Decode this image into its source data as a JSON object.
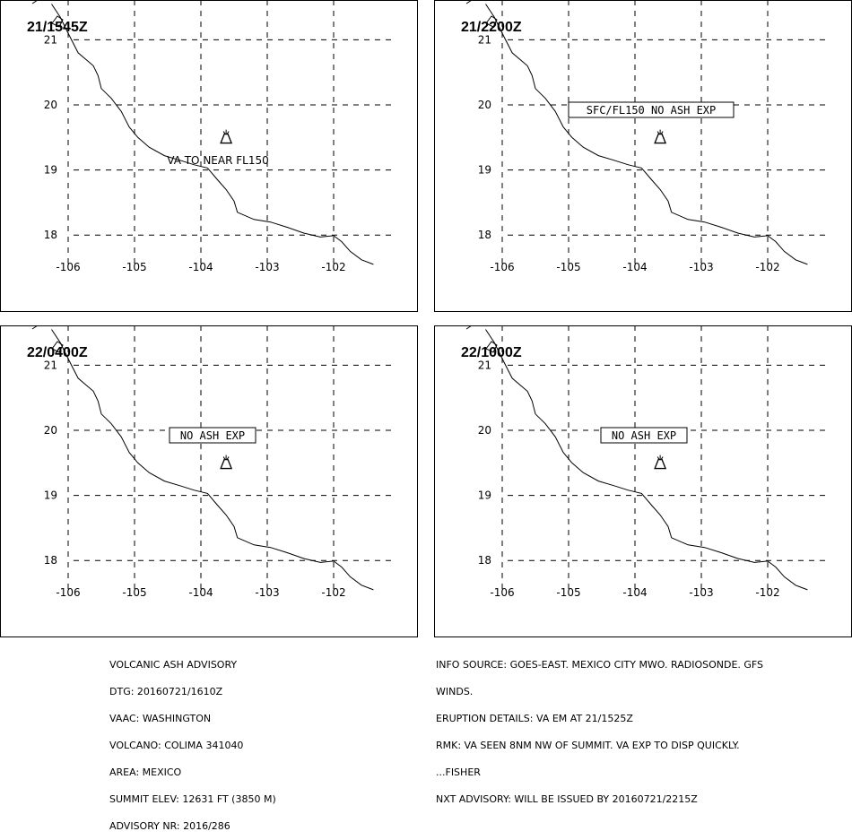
{
  "panels": [
    {
      "timestamp": "21/1545Z",
      "label": "VA TO NEAR FL150",
      "boxed": false
    },
    {
      "timestamp": "21/2200Z",
      "label": "SFC/FL150 NO ASH EXP",
      "boxed": true
    },
    {
      "timestamp": "22/0400Z",
      "label": "NO ASH EXP",
      "boxed": true
    },
    {
      "timestamp": "22/1000Z",
      "label": "NO ASH EXP",
      "boxed": true
    }
  ],
  "map": {
    "lon_ticks": [
      "-106",
      "-105",
      "-104",
      "-103",
      "-102"
    ],
    "lat_ticks": [
      "21",
      "20",
      "19",
      "18"
    ],
    "volcano": {
      "lon": -103.62,
      "lat": 19.51
    }
  },
  "advisory_left": [
    "VOLCANIC ASH ADVISORY",
    "DTG: 20160721/1610Z",
    "VAAC: WASHINGTON",
    "VOLCANO: COLIMA 341040",
    "AREA: MEXICO",
    "SUMMIT ELEV: 12631 FT (3850 M)",
    "ADVISORY NR: 2016/286"
  ],
  "advisory_right": [
    "INFO SOURCE: GOES-EAST. MEXICO CITY MWO. RADIOSONDE. GFS",
    "WINDS.",
    "ERUPTION DETAILS: VA EM AT 21/1525Z",
    "RMK: VA SEEN 8NM NW OF SUMMIT. VA EXP TO DISP QUICKLY.",
    "...FISHER",
    "NXT ADVISORY: WILL BE ISSUED BY 20160721/2215Z"
  ]
}
